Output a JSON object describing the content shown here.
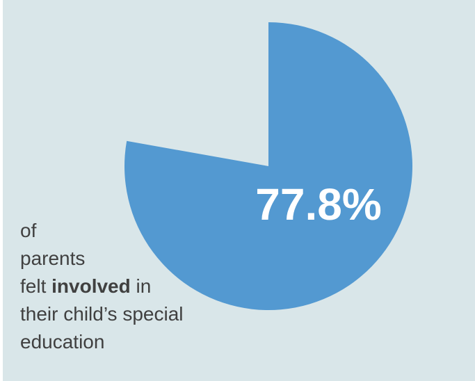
{
  "chart_data": {
    "type": "pie",
    "slices": [
      {
        "label": "",
        "value": 77.8,
        "color": "#5399d1"
      }
    ],
    "data_label": "77.8%",
    "data_label_color": "#ffffff",
    "start_angle_deg": 0,
    "direction": "clockwise",
    "background": "#d9e6e9"
  },
  "caption": {
    "line1": "of",
    "line2": "parents",
    "line3_before": "felt ",
    "line3_bold": "involved",
    "line3_after": " in",
    "line4": "their child’s special",
    "line5": "education"
  }
}
